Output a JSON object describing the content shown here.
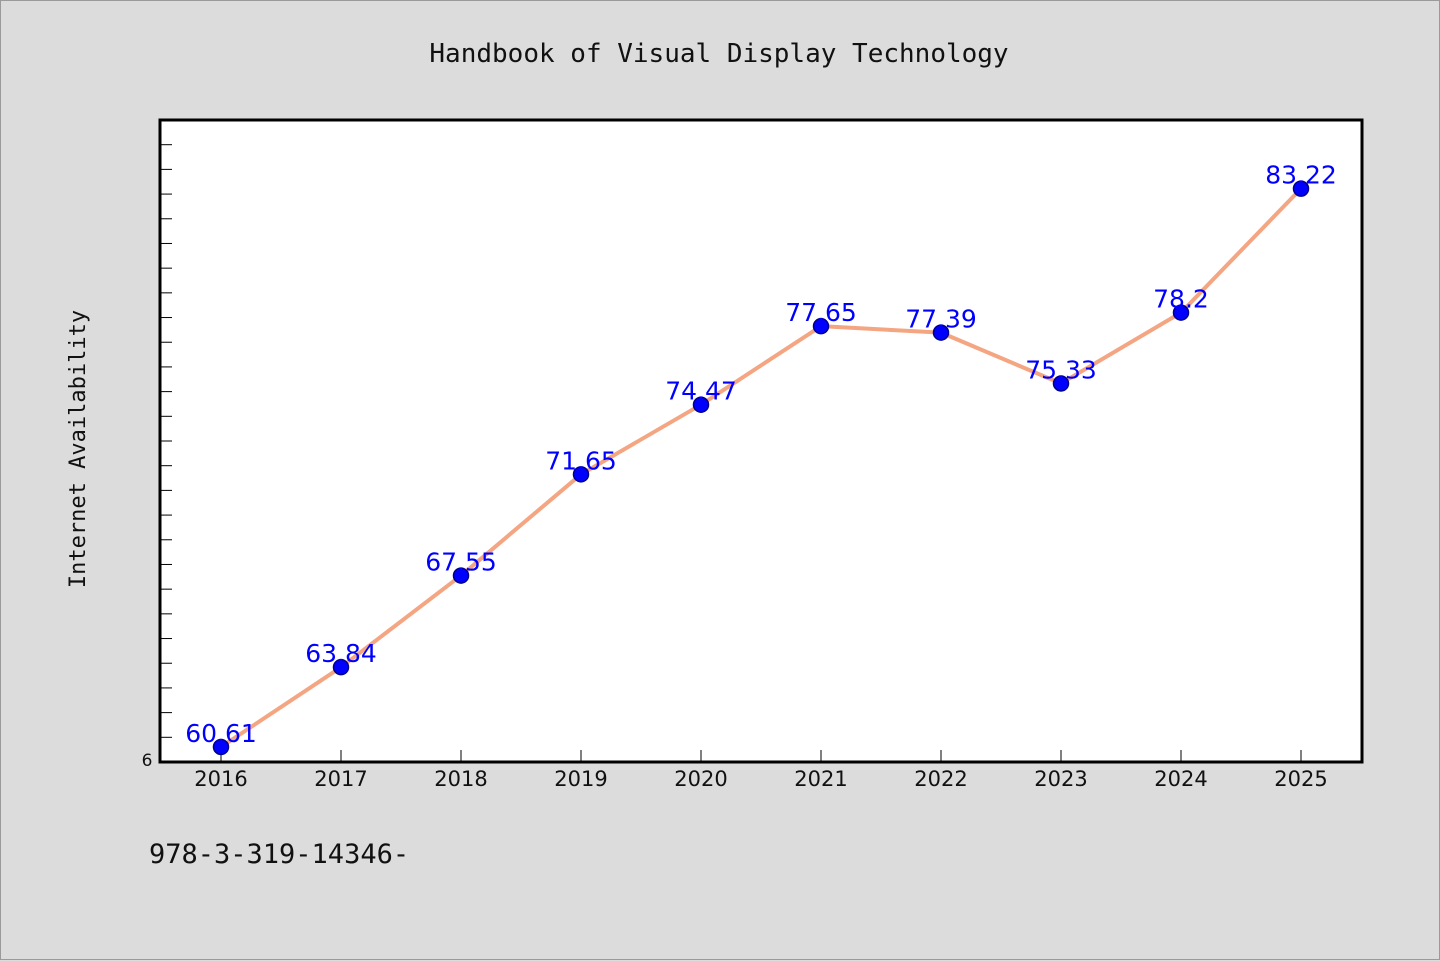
{
  "chart_data": {
    "type": "line",
    "title": "Handbook of Visual Display Technology",
    "xlabel": "",
    "ylabel": "Internet Availability",
    "categories": [
      "2016",
      "2017",
      "2018",
      "2019",
      "2020",
      "2021",
      "2022",
      "2023",
      "2024",
      "2025"
    ],
    "series": [
      {
        "values": [
          60.61,
          63.84,
          67.55,
          71.65,
          74.47,
          77.65,
          77.39,
          75.33,
          78.2,
          83.22
        ],
        "labels": [
          "60.61",
          "63.84",
          "67.55",
          "71.65",
          "74.47",
          "77.65",
          "77.39",
          "75.33",
          "78.2",
          "83.22"
        ]
      }
    ],
    "ylim": [
      60,
      86
    ],
    "y_tick_label": "6",
    "y_minor_tick_step": 1,
    "grid": false,
    "legend": "none",
    "line_color": "#f4a582",
    "marker_color": "#0000ff",
    "data_label_color": "#0000ff",
    "footnote": "978-3-319-14346-"
  }
}
